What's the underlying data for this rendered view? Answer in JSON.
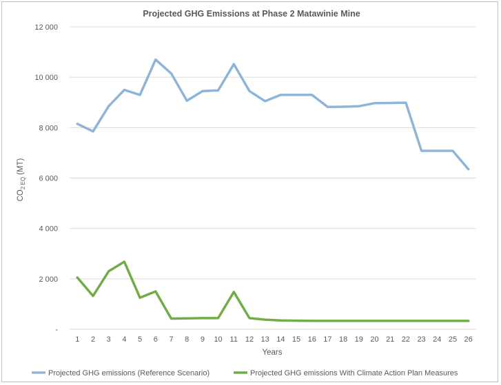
{
  "chart_data": {
    "type": "line",
    "title": "Projected GHG Emissions at Phase 2 Matawinie Mine",
    "xlabel": "Years",
    "ylabel": {
      "main": "CO",
      "sub": "2 EQ",
      "unit": "(MT)"
    },
    "ylim": [
      0,
      12000
    ],
    "yticks": [
      0,
      2000,
      4000,
      6000,
      8000,
      10000,
      12000
    ],
    "ytick_labels": [
      "-",
      "2 000",
      "4 000",
      "6 000",
      "8 000",
      "10 000",
      "12 000"
    ],
    "categories": [
      "1",
      "2",
      "3",
      "4",
      "5",
      "6",
      "7",
      "8",
      "9",
      "10",
      "11",
      "12",
      "13",
      "14",
      "15",
      "16",
      "17",
      "18",
      "19",
      "20",
      "21",
      "22",
      "23",
      "24",
      "25",
      "26"
    ],
    "grid": true,
    "legend_position": "bottom",
    "series": [
      {
        "name": "Projected GHG emissions (Reference Scenario)",
        "color": "#8eb4d8",
        "values": [
          8150,
          7850,
          8850,
          9500,
          9300,
          10700,
          10150,
          9070,
          9450,
          9480,
          10520,
          9450,
          9050,
          9300,
          9300,
          9300,
          8820,
          8830,
          8850,
          8970,
          8980,
          8990,
          7080,
          7080,
          7080,
          6350
        ]
      },
      {
        "name": "Projected GHG emissions With Climate Action Plan Measures",
        "color": "#70ad47",
        "values": [
          2050,
          1320,
          2300,
          2680,
          1250,
          1500,
          420,
          430,
          440,
          440,
          1480,
          440,
          380,
          350,
          340,
          330,
          330,
          330,
          330,
          330,
          330,
          330,
          330,
          330,
          330,
          330
        ]
      }
    ]
  }
}
